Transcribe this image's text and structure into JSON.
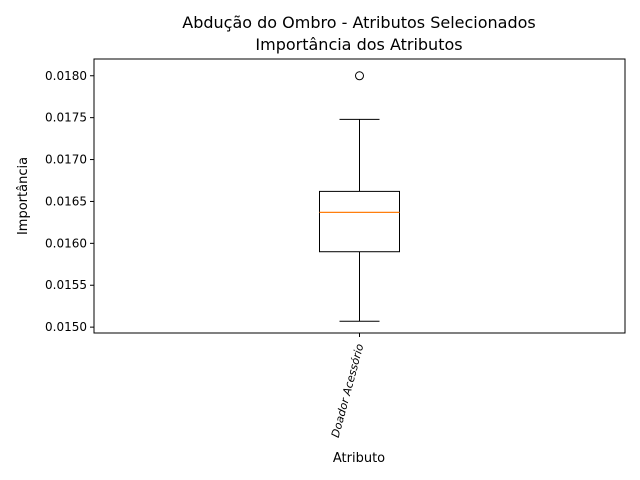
{
  "chart_data": {
    "type": "box",
    "title": "Abdução do Ombro - Atributos Selecionados",
    "subtitle": "Importância dos Atributos",
    "xlabel": "Atributo",
    "ylabel": "Importância",
    "categories": [
      "Doador Acessório"
    ],
    "ylim": [
      0.01493,
      0.0182
    ],
    "yticks": [
      0.015,
      0.0155,
      0.016,
      0.0165,
      0.017,
      0.0175,
      0.018
    ],
    "ytick_labels": [
      "0.0150",
      "0.0155",
      "0.0160",
      "0.0165",
      "0.0170",
      "0.0175",
      "0.0180"
    ],
    "boxes": [
      {
        "category": "Doador Acessório",
        "whisker_low": 0.01507,
        "q1": 0.0159,
        "median": 0.01637,
        "q3": 0.01662,
        "whisker_high": 0.01748,
        "outliers": [
          0.018
        ]
      }
    ],
    "colors": {
      "box": "#000000",
      "median": "#ff7f0e",
      "outlier": "#000000"
    },
    "grid": false,
    "legend": "none"
  }
}
